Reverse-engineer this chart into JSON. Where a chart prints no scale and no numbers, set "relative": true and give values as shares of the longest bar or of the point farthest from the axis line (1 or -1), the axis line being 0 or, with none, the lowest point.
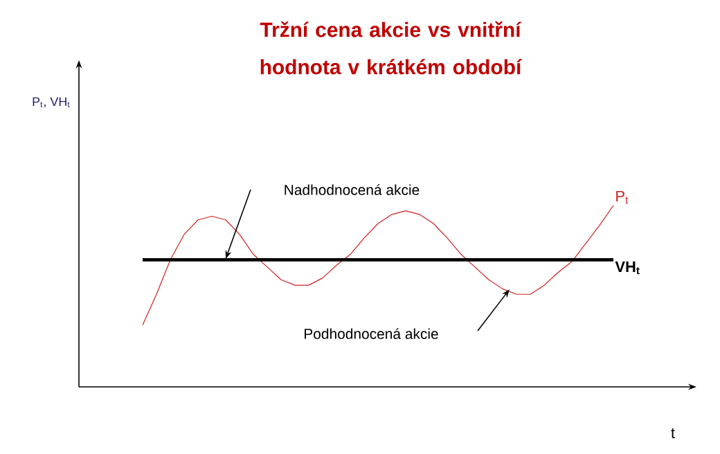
{
  "chart_data": {
    "type": "line",
    "title": "Tržní cena akcie vs vnitřní hodnota v krátkém období",
    "xlabel": "t",
    "relative": true,
    "categories": [
      null,
      null,
      null,
      null,
      null,
      null,
      null,
      null,
      null,
      null,
      null,
      null,
      null,
      null,
      null,
      null,
      null,
      null,
      null,
      null,
      null,
      null,
      null,
      null,
      null,
      null,
      null,
      null,
      null,
      null,
      null,
      null,
      null,
      null,
      null
    ],
    "series": [
      {
        "name": "P$_{t}$",
        "color": "#d02020",
        "values": [
          0.34,
          0.51,
          0.7,
          0.84,
          0.92,
          0.94,
          0.92,
          0.84,
          0.73,
          0.66,
          0.59,
          0.56,
          0.56,
          0.6,
          0.67,
          0.73,
          0.82,
          0.9,
          0.95,
          0.97,
          0.95,
          0.9,
          0.82,
          0.73,
          0.66,
          0.59,
          0.54,
          0.51,
          0.51,
          0.56,
          0.63,
          0.69,
          0.79,
          0.89,
          1.0
        ]
      },
      {
        "name": "VH$_{t}$",
        "color": "#000000",
        "values": [
          0.7,
          0.7,
          0.7,
          0.7,
          0.7,
          0.7,
          0.7,
          0.7,
          0.7,
          0.7,
          0.7,
          0.7,
          0.7,
          0.7,
          0.7,
          0.7,
          0.7,
          0.7,
          0.7,
          0.7,
          0.7,
          0.7,
          0.7,
          0.7,
          0.7,
          0.7,
          0.7,
          0.7,
          0.7,
          0.7,
          0.7,
          0.7,
          0.7,
          0.7,
          0.7
        ]
      }
    ],
    "annotations": [
      "Nadhodnocená akcie",
      "Podhodnocená akcie",
      "P$_{t}$, VH$_{t}$"
    ]
  }
}
